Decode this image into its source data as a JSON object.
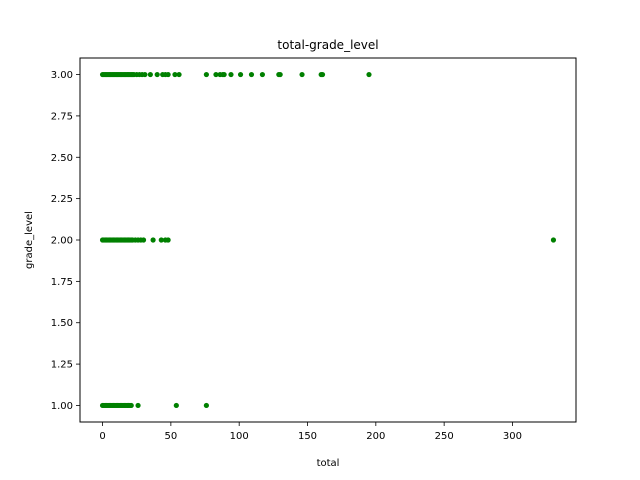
{
  "chart_data": {
    "type": "scatter",
    "title": "total-grade_level",
    "xlabel": "total",
    "ylabel": "grade_level",
    "xlim": [
      -16.5,
      346.5
    ],
    "ylim": [
      0.9,
      3.1
    ],
    "xticks": [
      0,
      50,
      100,
      150,
      200,
      250,
      300
    ],
    "xtick_labels": [
      "0",
      "50",
      "100",
      "150",
      "200",
      "250",
      "300"
    ],
    "yticks": [
      1.0,
      1.25,
      1.5,
      1.75,
      2.0,
      2.25,
      2.5,
      2.75,
      3.0
    ],
    "ytick_labels": [
      "1.00",
      "1.25",
      "1.50",
      "1.75",
      "2.00",
      "2.25",
      "2.50",
      "2.75",
      "3.00"
    ],
    "grid": false,
    "marker_color": "#008000",
    "series": [
      {
        "points": [
          [
            0,
            1
          ],
          [
            1,
            1
          ],
          [
            2,
            1
          ],
          [
            3,
            1
          ],
          [
            4,
            1
          ],
          [
            5,
            1
          ],
          [
            6,
            1
          ],
          [
            7,
            1
          ],
          [
            8,
            1
          ],
          [
            9,
            1
          ],
          [
            10,
            1
          ],
          [
            11,
            1
          ],
          [
            12,
            1
          ],
          [
            13,
            1
          ],
          [
            14,
            1
          ],
          [
            15,
            1
          ],
          [
            16,
            1
          ],
          [
            17,
            1
          ],
          [
            18,
            1
          ],
          [
            19,
            1
          ],
          [
            20,
            1
          ],
          [
            21,
            1
          ],
          [
            26,
            1
          ],
          [
            54,
            1
          ],
          [
            76,
            1
          ],
          [
            0,
            2
          ],
          [
            1,
            2
          ],
          [
            2,
            2
          ],
          [
            3,
            2
          ],
          [
            4,
            2
          ],
          [
            5,
            2
          ],
          [
            6,
            2
          ],
          [
            7,
            2
          ],
          [
            8,
            2
          ],
          [
            9,
            2
          ],
          [
            10,
            2
          ],
          [
            11,
            2
          ],
          [
            12,
            2
          ],
          [
            13,
            2
          ],
          [
            14,
            2
          ],
          [
            15,
            2
          ],
          [
            16,
            2
          ],
          [
            17,
            2
          ],
          [
            18,
            2
          ],
          [
            19,
            2
          ],
          [
            20,
            2
          ],
          [
            21,
            2
          ],
          [
            22,
            2
          ],
          [
            24,
            2
          ],
          [
            26,
            2
          ],
          [
            28,
            2
          ],
          [
            30,
            2
          ],
          [
            37,
            2
          ],
          [
            43,
            2
          ],
          [
            46,
            2
          ],
          [
            48,
            2
          ],
          [
            330,
            2
          ],
          [
            0,
            3
          ],
          [
            1,
            3
          ],
          [
            2,
            3
          ],
          [
            3,
            3
          ],
          [
            4,
            3
          ],
          [
            5,
            3
          ],
          [
            6,
            3
          ],
          [
            7,
            3
          ],
          [
            8,
            3
          ],
          [
            9,
            3
          ],
          [
            10,
            3
          ],
          [
            11,
            3
          ],
          [
            12,
            3
          ],
          [
            13,
            3
          ],
          [
            14,
            3
          ],
          [
            15,
            3
          ],
          [
            16,
            3
          ],
          [
            17,
            3
          ],
          [
            18,
            3
          ],
          [
            19,
            3
          ],
          [
            20,
            3
          ],
          [
            21,
            3
          ],
          [
            22,
            3
          ],
          [
            23,
            3
          ],
          [
            25,
            3
          ],
          [
            27,
            3
          ],
          [
            29,
            3
          ],
          [
            31,
            3
          ],
          [
            35,
            3
          ],
          [
            40,
            3
          ],
          [
            44,
            3
          ],
          [
            46,
            3
          ],
          [
            48,
            3
          ],
          [
            53,
            3
          ],
          [
            56,
            3
          ],
          [
            76,
            3
          ],
          [
            83,
            3
          ],
          [
            86,
            3
          ],
          [
            88,
            3
          ],
          [
            89,
            3
          ],
          [
            94,
            3
          ],
          [
            101,
            3
          ],
          [
            109,
            3
          ],
          [
            117,
            3
          ],
          [
            129,
            3
          ],
          [
            130,
            3
          ],
          [
            146,
            3
          ],
          [
            160,
            3
          ],
          [
            161,
            3
          ],
          [
            195,
            3
          ]
        ]
      }
    ]
  }
}
